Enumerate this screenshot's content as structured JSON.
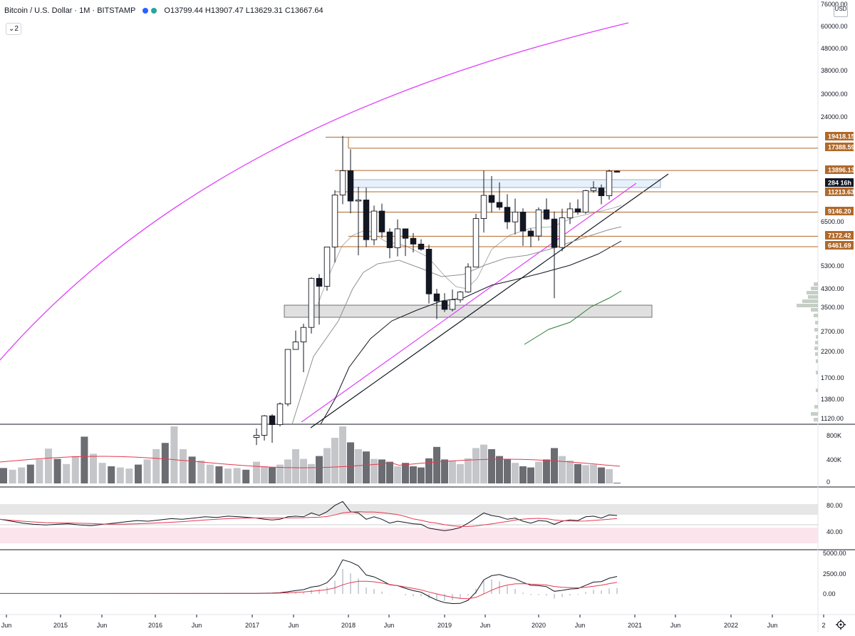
{
  "header": {
    "symbol": "Bitcoin / U.S. Dollar · 1M · BITSTAMP",
    "ohlc": "O13799.44 H13907.47 L13629.31 C13667.64",
    "legend_toggle": "2",
    "currency": "USD",
    "dot_colors": [
      "#2962ff",
      "#26a69a"
    ]
  },
  "price_axis": {
    "labels": [
      "76000.00",
      "60000.00",
      "48000.00",
      "38000.00",
      "30000.00",
      "24000.00",
      "6500.00",
      "5300.00",
      "4300.00",
      "3500.00",
      "2700.00",
      "2200.00",
      "1700.00",
      "1380.00",
      "1120.00"
    ]
  },
  "level_badges": [
    {
      "text": "19418.15",
      "type": "level"
    },
    {
      "text": "17388.59",
      "type": "level"
    },
    {
      "text": "13896.13",
      "type": "level"
    },
    {
      "text": "284 16h",
      "type": "dark"
    },
    {
      "text": "11213.63",
      "type": "level"
    },
    {
      "text": "9146.20",
      "type": "level"
    },
    {
      "text": "7172.42",
      "type": "level"
    },
    {
      "text": "6461.69",
      "type": "level"
    }
  ],
  "volume_axis": [
    "800K",
    "400K",
    "0"
  ],
  "rsi_axis": [
    "80.00",
    "40.00"
  ],
  "macd_axis": [
    "5000.00",
    "2500.00",
    "0.00"
  ],
  "time_axis": [
    "Jun",
    "2015",
    "Jun",
    "2016",
    "Jun",
    "2017",
    "Jun",
    "2018",
    "Jun",
    "2019",
    "Jun",
    "2020",
    "Jun",
    "2021",
    "Jun",
    "2022",
    "Jun",
    "2"
  ],
  "colors": {
    "level": "#b0692a",
    "curve": "#e040fb",
    "trend": "#131722",
    "ma_slow": "#2e7d32",
    "rsi_band": "#fce4ec",
    "vol_up": "#c5c6ca",
    "vol_down": "#6b6d73",
    "macd_signal": "#e53935"
  },
  "chart_data": {
    "type": "candlestick",
    "title": "Bitcoin / U.S. Dollar · 1M · BITSTAMP",
    "interval": "1M",
    "log_scale": true,
    "ylim": [
      1000,
      76000
    ],
    "x_start": "2016-12",
    "candles": [
      [
        950,
        1040,
        880,
        970
      ],
      [
        970,
        1190,
        920,
        1180
      ],
      [
        1180,
        1200,
        900,
        1080
      ],
      [
        1080,
        1350,
        1060,
        1330
      ],
      [
        1330,
        2300,
        1300,
        2300
      ],
      [
        2300,
        2780,
        2300,
        2480
      ],
      [
        2480,
        2980,
        1830,
        2870
      ],
      [
        2870,
        4750,
        2700,
        4700
      ],
      [
        4700,
        4900,
        2950,
        4340
      ],
      [
        4340,
        6450,
        4150,
        6440
      ],
      [
        6440,
        11400,
        5500,
        10860
      ],
      [
        10860,
        19666,
        9900,
        13860
      ],
      [
        13860,
        17200,
        9030,
        10220
      ],
      [
        10220,
        11790,
        5920,
        10330
      ],
      [
        10330,
        11700,
        6430,
        6930
      ],
      [
        6930,
        9760,
        6560,
        9240
      ],
      [
        9240,
        9960,
        7050,
        7490
      ],
      [
        7490,
        7770,
        5750,
        6390
      ],
      [
        6390,
        8500,
        5860,
        7730
      ],
      [
        7730,
        7750,
        5880,
        7030
      ],
      [
        7030,
        7410,
        6100,
        6630
      ],
      [
        6630,
        6960,
        6200,
        6300
      ],
      [
        6300,
        6590,
        3650,
        4020
      ],
      [
        4020,
        4230,
        3120,
        3740
      ],
      [
        3740,
        4050,
        3350,
        3440
      ],
      [
        3440,
        4200,
        3370,
        3790
      ],
      [
        3790,
        4140,
        3680,
        4100
      ],
      [
        4100,
        5470,
        4070,
        5270
      ],
      [
        5270,
        9000,
        5270,
        8570
      ],
      [
        8570,
        13880,
        7450,
        10820
      ],
      [
        10820,
        13130,
        9100,
        10080
      ],
      [
        10080,
        12330,
        9330,
        9600
      ],
      [
        9600,
        10950,
        7710,
        8290
      ],
      [
        8290,
        10480,
        7300,
        9150
      ],
      [
        9150,
        9500,
        6520,
        7560
      ],
      [
        7560,
        7760,
        6430,
        7190
      ],
      [
        7190,
        9590,
        6860,
        9360
      ],
      [
        9360,
        10500,
        8450,
        8530
      ],
      [
        8530,
        9190,
        3850,
        6410
      ],
      [
        6410,
        9460,
        6170,
        8630
      ],
      [
        8630,
        10070,
        8110,
        9450
      ],
      [
        9450,
        10390,
        8910,
        9140
      ],
      [
        9140,
        11450,
        8980,
        11340
      ],
      [
        11340,
        12480,
        11120,
        11650
      ],
      [
        11650,
        12070,
        9890,
        10780
      ],
      [
        10780,
        14000,
        10370,
        13800
      ],
      [
        13800,
        13907.47,
        13629.31,
        13667.64
      ]
    ],
    "horizontal_levels": [
      19418.15,
      17388.59,
      13896.13,
      11213.63,
      9146.2,
      7172.42,
      6461.69
    ],
    "volume": [
      380,
      300,
      280,
      330,
      420,
      600,
      430,
      340,
      480,
      620,
      800,
      1000,
      720,
      600,
      560,
      430,
      420,
      380,
      300,
      360,
      300,
      280,
      440,
      640,
      420,
      400,
      340,
      440,
      620,
      680,
      600,
      480,
      430,
      360,
      300,
      280,
      380,
      420,
      620,
      480,
      400,
      340,
      320,
      330,
      280,
      250,
      12
    ],
    "rsi": [
      60,
      58,
      57,
      58,
      62,
      63,
      62,
      68,
      64,
      70,
      80,
      86,
      70,
      68,
      58,
      62,
      58,
      52,
      55,
      53,
      51,
      50,
      44,
      42,
      40,
      42,
      45,
      52,
      60,
      68,
      64,
      62,
      58,
      60,
      55,
      52,
      56,
      55,
      50,
      55,
      57,
      56,
      62,
      63,
      60,
      65,
      64
    ],
    "macd": [
      40,
      50,
      60,
      80,
      150,
      230,
      290,
      460,
      540,
      760,
      1300,
      2300,
      2150,
      1900,
      1280,
      1150,
      900,
      620,
      560,
      380,
      220,
      120,
      -170,
      -420,
      -580,
      -650,
      -640,
      -430,
      120,
      950,
      1230,
      1310,
      1150,
      1020,
      780,
      580,
      560,
      490,
      180,
      240,
      330,
      360,
      580,
      800,
      830,
      1060,
      1180
    ],
    "macd_signal": [
      30,
      38,
      45,
      57,
      78,
      105,
      133,
      180,
      225,
      295,
      410,
      615,
      760,
      850,
      850,
      815,
      740,
      640,
      560,
      470,
      370,
      270,
      130,
      0,
      -120,
      -225,
      -305,
      -320,
      -230,
      5,
      250,
      460,
      600,
      680,
      690,
      660,
      640,
      600,
      500,
      450,
      430,
      410,
      450,
      520,
      590,
      690,
      780
    ]
  }
}
